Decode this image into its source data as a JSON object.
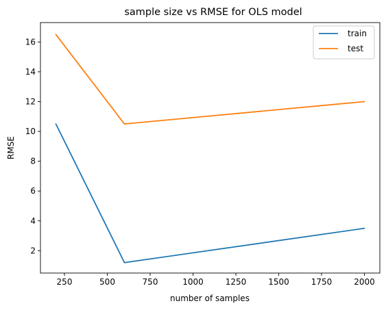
{
  "chart_data": {
    "type": "line",
    "title": "sample size vs RMSE for OLS model",
    "xlabel": "number of samples",
    "ylabel": "RMSE",
    "x": [
      200,
      600,
      2000
    ],
    "series": [
      {
        "name": "train",
        "values": [
          10.5,
          1.2,
          3.5
        ],
        "color": "#1f77b4"
      },
      {
        "name": "test",
        "values": [
          16.5,
          10.5,
          12.0
        ],
        "color": "#ff7f0e"
      }
    ],
    "xlim": [
      110,
      2090
    ],
    "ylim": [
      0.5,
      17.3
    ],
    "xticks": [
      250,
      500,
      750,
      1000,
      1250,
      1500,
      1750,
      2000
    ],
    "yticks": [
      2,
      4,
      6,
      8,
      10,
      12,
      14,
      16
    ],
    "grid": false,
    "legend_position": "top-right"
  }
}
